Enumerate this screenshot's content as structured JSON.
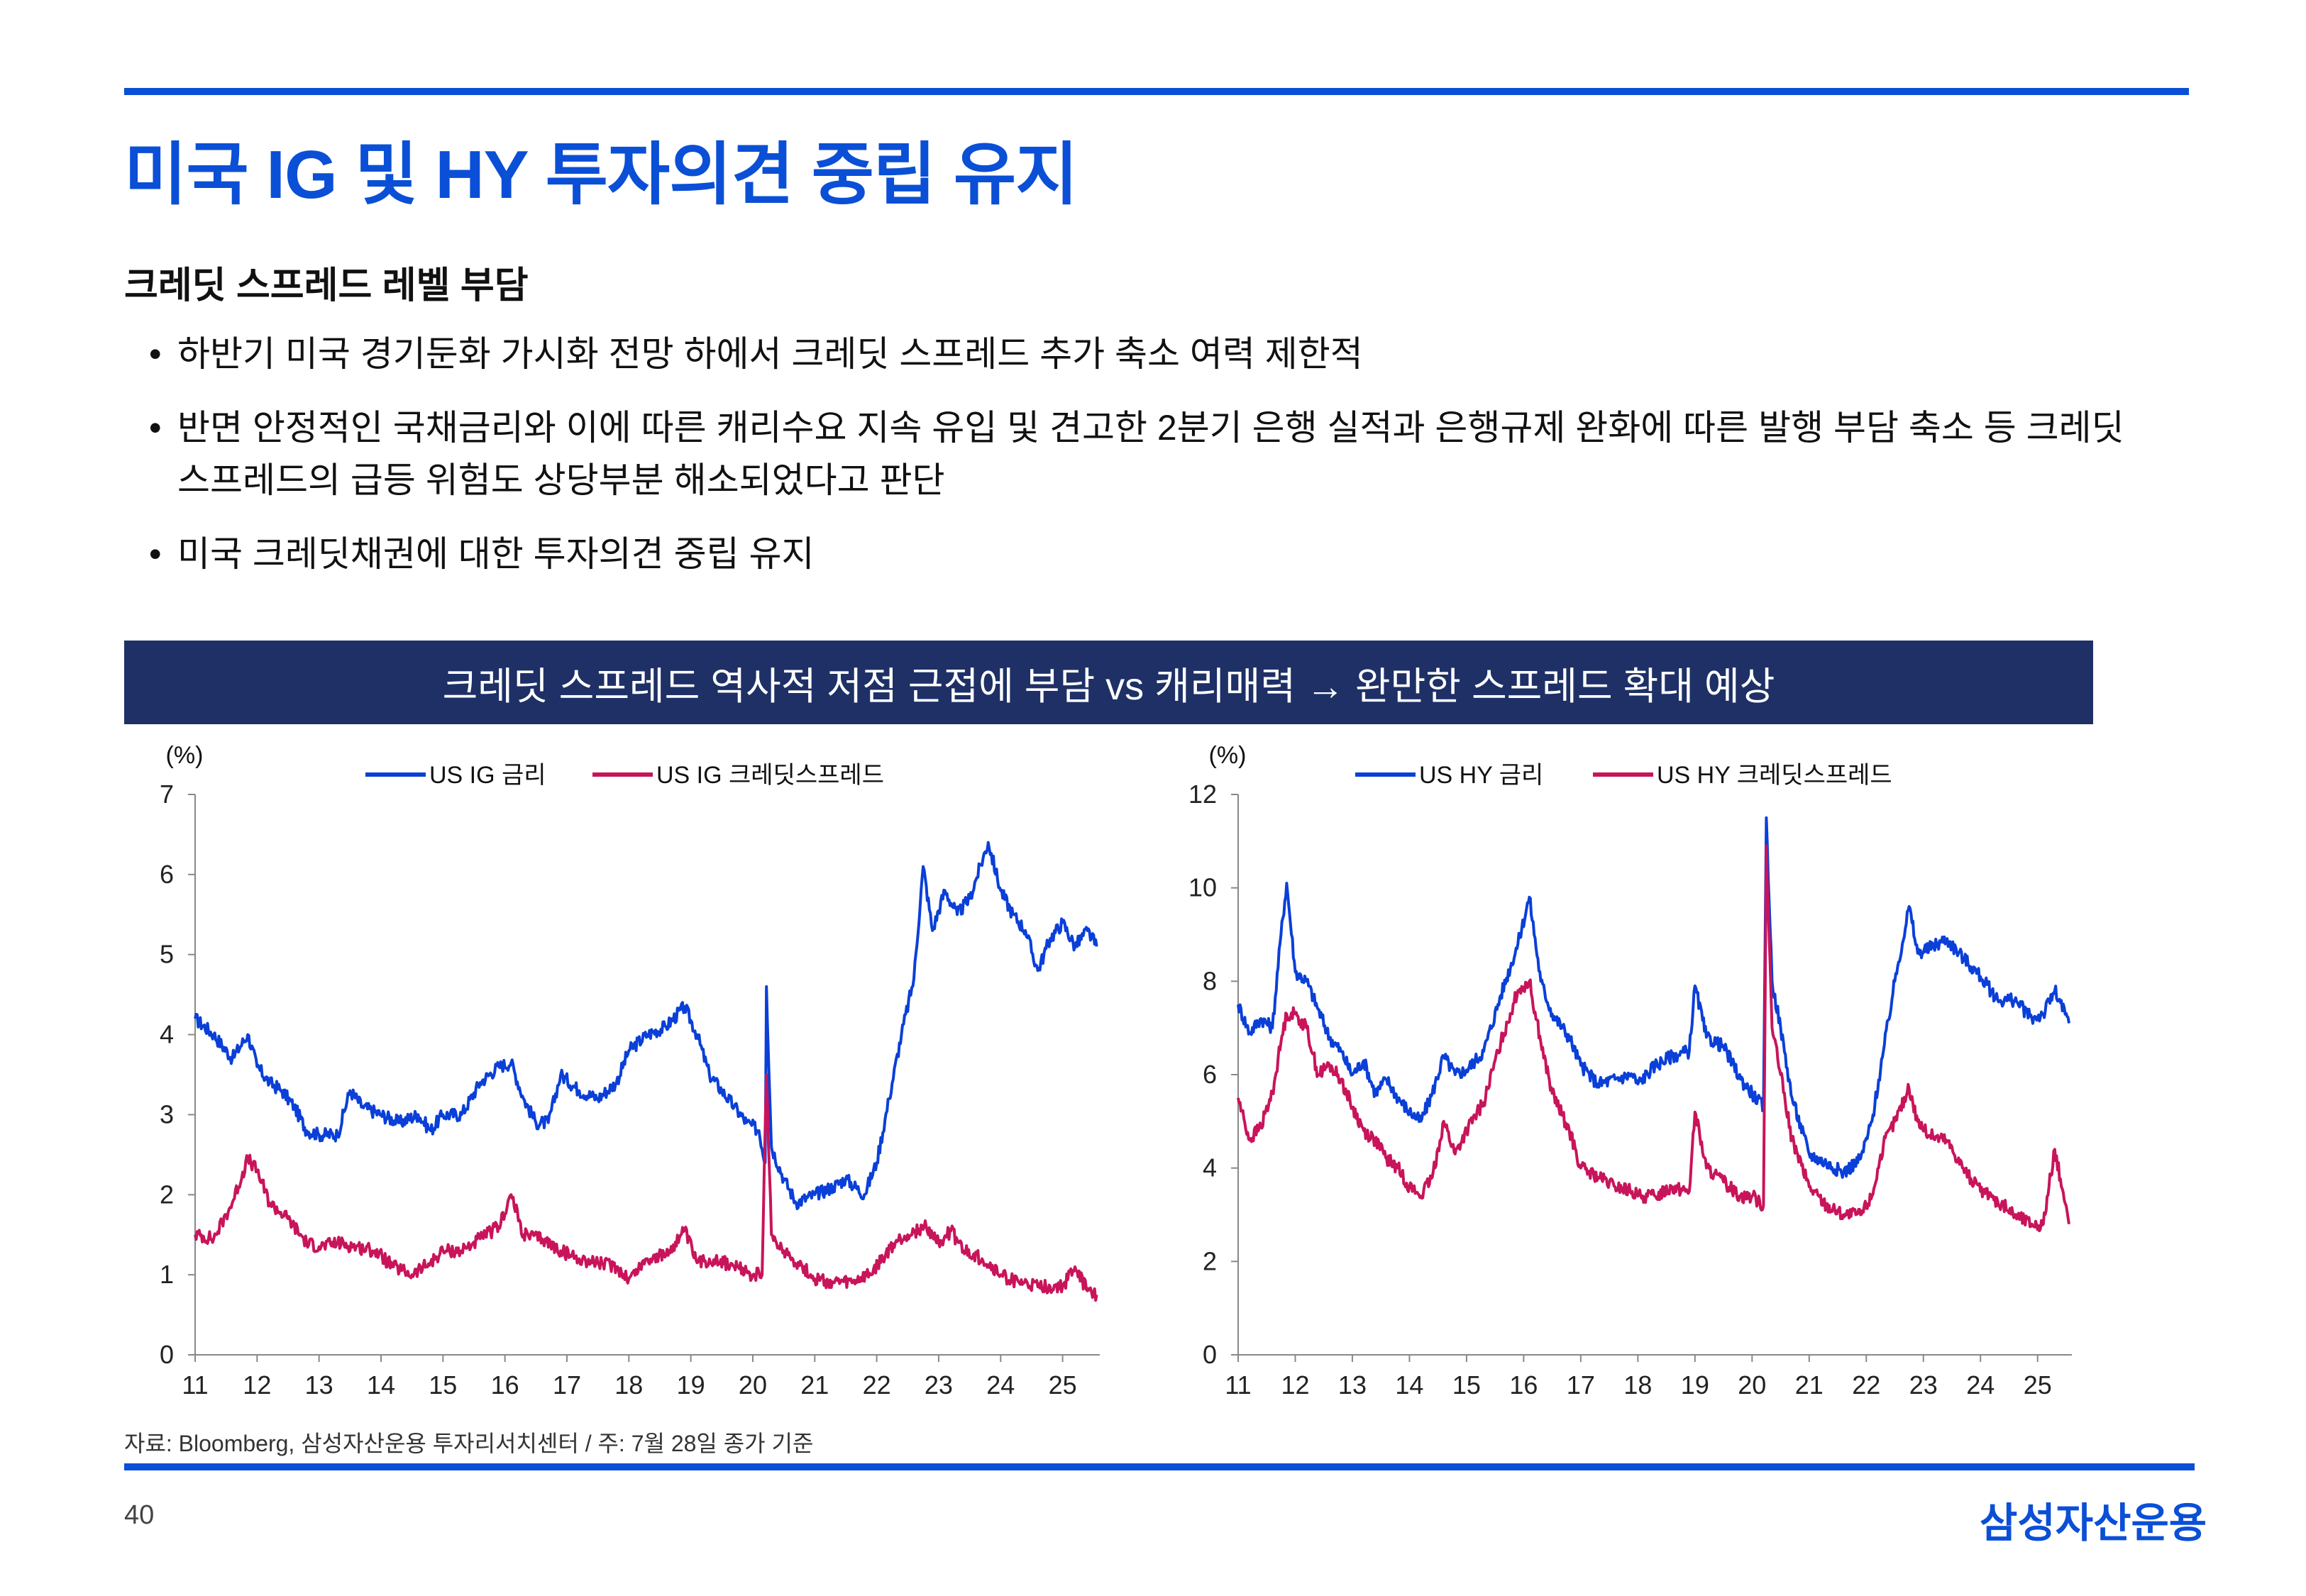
{
  "header": {
    "title": "미국 IG 및 HY 투자의견 중립 유지",
    "subtitle": "크레딧 스프레드 레벨 부담"
  },
  "bullets": [
    "하반기 미국 경기둔화 가시화 전망 하에서 크레딧 스프레드 추가 축소 여력 제한적",
    "반면 안정적인 국채금리와 이에 따른 캐리수요 지속 유입 및 견고한 2분기 은행 실적과 은행규제 완화에 따른 발행 부담 축소 등 크레딧 스프레드의 급등 위험도 상당부분 해소되었다고 판단",
    "미국 크레딧채권에 대한 투자의견 중립 유지"
  ],
  "banner": {
    "text": "크레딧 스프레드 역사적 저점 근접에 부담 vs 캐리매력 → 완만한 스프레드 확대 예상"
  },
  "colors": {
    "brand_blue": "#0a4fd6",
    "banner_navy": "#1e3066",
    "series_blue": "#0a3fd8",
    "series_magenta": "#c8145a"
  },
  "chart_data": [
    {
      "type": "line",
      "unit_label": "(%)",
      "ylim": [
        0,
        7
      ],
      "yticks": [
        "0",
        "1",
        "2",
        "3",
        "4",
        "5",
        "6",
        "7"
      ],
      "xlim": [
        11,
        25.6
      ],
      "xticks": [
        "11",
        "12",
        "13",
        "14",
        "15",
        "16",
        "17",
        "18",
        "19",
        "20",
        "21",
        "22",
        "23",
        "24",
        "25"
      ],
      "legend_position": "top",
      "series": [
        {
          "name": "US IG 금리",
          "color": "#0a3fd8",
          "points": [
            [
              11.0,
              4.2
            ],
            [
              11.3,
              4.0
            ],
            [
              11.6,
              3.7
            ],
            [
              11.85,
              4.0
            ],
            [
              12.0,
              3.6
            ],
            [
              12.2,
              3.4
            ],
            [
              12.4,
              3.3
            ],
            [
              12.6,
              3.1
            ],
            [
              12.8,
              2.8
            ],
            [
              13.0,
              2.75
            ],
            [
              13.3,
              2.75
            ],
            [
              13.5,
              3.3
            ],
            [
              13.7,
              3.1
            ],
            [
              14.0,
              3.0
            ],
            [
              14.3,
              2.9
            ],
            [
              14.6,
              3.0
            ],
            [
              14.8,
              2.8
            ],
            [
              15.0,
              3.0
            ],
            [
              15.3,
              3.0
            ],
            [
              15.6,
              3.4
            ],
            [
              15.9,
              3.6
            ],
            [
              16.1,
              3.65
            ],
            [
              16.3,
              3.2
            ],
            [
              16.5,
              2.9
            ],
            [
              16.7,
              2.9
            ],
            [
              16.9,
              3.5
            ],
            [
              17.2,
              3.3
            ],
            [
              17.5,
              3.2
            ],
            [
              17.8,
              3.4
            ],
            [
              18.0,
              3.8
            ],
            [
              18.3,
              4.0
            ],
            [
              18.6,
              4.1
            ],
            [
              18.9,
              4.35
            ],
            [
              19.1,
              4.0
            ],
            [
              19.3,
              3.5
            ],
            [
              19.5,
              3.3
            ],
            [
              19.7,
              3.1
            ],
            [
              19.9,
              2.9
            ],
            [
              20.1,
              2.8
            ],
            [
              20.2,
              2.4
            ],
            [
              20.22,
              4.6
            ],
            [
              20.3,
              2.6
            ],
            [
              20.5,
              2.2
            ],
            [
              20.7,
              1.9
            ],
            [
              21.0,
              2.0
            ],
            [
              21.3,
              2.1
            ],
            [
              21.5,
              2.2
            ],
            [
              21.8,
              2.0
            ],
            [
              22.0,
              2.4
            ],
            [
              22.2,
              3.2
            ],
            [
              22.4,
              4.0
            ],
            [
              22.6,
              4.7
            ],
            [
              22.75,
              6.1
            ],
            [
              22.9,
              5.3
            ],
            [
              23.1,
              5.8
            ],
            [
              23.3,
              5.5
            ],
            [
              23.5,
              5.7
            ],
            [
              23.8,
              6.4
            ],
            [
              24.0,
              5.8
            ],
            [
              24.2,
              5.5
            ],
            [
              24.4,
              5.3
            ],
            [
              24.6,
              4.8
            ],
            [
              24.8,
              5.2
            ],
            [
              25.0,
              5.4
            ],
            [
              25.2,
              5.1
            ],
            [
              25.4,
              5.3
            ],
            [
              25.55,
              5.1
            ]
          ]
        },
        {
          "name": "US IG 크레딧스프레드",
          "color": "#c8145a",
          "points": [
            [
              11.0,
              1.5
            ],
            [
              11.3,
              1.45
            ],
            [
              11.6,
              1.9
            ],
            [
              11.85,
              2.45
            ],
            [
              12.0,
              2.3
            ],
            [
              12.2,
              1.9
            ],
            [
              12.5,
              1.7
            ],
            [
              12.8,
              1.4
            ],
            [
              13.0,
              1.35
            ],
            [
              13.3,
              1.4
            ],
            [
              13.6,
              1.35
            ],
            [
              13.9,
              1.3
            ],
            [
              14.2,
              1.1
            ],
            [
              14.5,
              1.0
            ],
            [
              14.8,
              1.15
            ],
            [
              15.0,
              1.3
            ],
            [
              15.3,
              1.3
            ],
            [
              15.6,
              1.45
            ],
            [
              15.9,
              1.6
            ],
            [
              16.1,
              2.0
            ],
            [
              16.3,
              1.5
            ],
            [
              16.6,
              1.45
            ],
            [
              16.9,
              1.3
            ],
            [
              17.2,
              1.2
            ],
            [
              17.5,
              1.15
            ],
            [
              17.8,
              1.1
            ],
            [
              18.0,
              0.95
            ],
            [
              18.3,
              1.2
            ],
            [
              18.6,
              1.25
            ],
            [
              18.9,
              1.55
            ],
            [
              19.1,
              1.15
            ],
            [
              19.4,
              1.2
            ],
            [
              19.7,
              1.1
            ],
            [
              20.0,
              1.0
            ],
            [
              20.15,
              1.0
            ],
            [
              20.22,
              3.5
            ],
            [
              20.3,
              1.5
            ],
            [
              20.5,
              1.3
            ],
            [
              20.8,
              1.1
            ],
            [
              21.0,
              0.95
            ],
            [
              21.3,
              0.9
            ],
            [
              21.6,
              0.9
            ],
            [
              21.9,
              1.0
            ],
            [
              22.1,
              1.2
            ],
            [
              22.3,
              1.4
            ],
            [
              22.5,
              1.5
            ],
            [
              22.8,
              1.6
            ],
            [
              23.0,
              1.4
            ],
            [
              23.2,
              1.55
            ],
            [
              23.4,
              1.3
            ],
            [
              23.7,
              1.2
            ],
            [
              24.0,
              1.0
            ],
            [
              24.3,
              0.9
            ],
            [
              24.6,
              0.85
            ],
            [
              24.8,
              0.85
            ],
            [
              25.0,
              0.85
            ],
            [
              25.2,
              1.1
            ],
            [
              25.4,
              0.8
            ],
            [
              25.55,
              0.75
            ]
          ]
        }
      ]
    },
    {
      "type": "line",
      "unit_label": "(%)",
      "ylim": [
        0,
        12
      ],
      "yticks": [
        "0",
        "2",
        "4",
        "6",
        "8",
        "10",
        "12"
      ],
      "xlim": [
        11,
        25.6
      ],
      "xticks": [
        "11",
        "12",
        "13",
        "14",
        "15",
        "16",
        "17",
        "18",
        "19",
        "20",
        "21",
        "22",
        "23",
        "24",
        "25"
      ],
      "legend_position": "top",
      "series": [
        {
          "name": "US HY 금리",
          "color": "#0a3fd8",
          "points": [
            [
              11.0,
              7.5
            ],
            [
              11.2,
              6.9
            ],
            [
              11.4,
              7.2
            ],
            [
              11.6,
              7.0
            ],
            [
              11.75,
              9.0
            ],
            [
              11.85,
              10.1
            ],
            [
              12.0,
              8.2
            ],
            [
              12.2,
              8.0
            ],
            [
              12.4,
              7.4
            ],
            [
              12.6,
              6.8
            ],
            [
              12.8,
              6.5
            ],
            [
              13.0,
              6.0
            ],
            [
              13.2,
              6.3
            ],
            [
              13.4,
              5.6
            ],
            [
              13.6,
              5.9
            ],
            [
              13.8,
              5.5
            ],
            [
              14.0,
              5.2
            ],
            [
              14.2,
              5.0
            ],
            [
              14.4,
              5.6
            ],
            [
              14.6,
              6.4
            ],
            [
              14.8,
              6.0
            ],
            [
              15.0,
              6.1
            ],
            [
              15.3,
              6.5
            ],
            [
              15.6,
              7.7
            ],
            [
              15.9,
              8.8
            ],
            [
              16.1,
              9.8
            ],
            [
              16.3,
              8.0
            ],
            [
              16.5,
              7.3
            ],
            [
              16.8,
              6.8
            ],
            [
              17.0,
              6.2
            ],
            [
              17.3,
              5.8
            ],
            [
              17.6,
              5.9
            ],
            [
              17.9,
              6.0
            ],
            [
              18.0,
              5.8
            ],
            [
              18.3,
              6.2
            ],
            [
              18.6,
              6.4
            ],
            [
              18.9,
              6.5
            ],
            [
              19.0,
              7.9
            ],
            [
              19.2,
              6.8
            ],
            [
              19.5,
              6.6
            ],
            [
              19.8,
              5.9
            ],
            [
              20.0,
              5.6
            ],
            [
              20.2,
              5.3
            ],
            [
              20.25,
              11.5
            ],
            [
              20.35,
              8.0
            ],
            [
              20.5,
              7.0
            ],
            [
              20.7,
              5.5
            ],
            [
              21.0,
              4.3
            ],
            [
              21.3,
              4.1
            ],
            [
              21.6,
              3.9
            ],
            [
              21.9,
              4.2
            ],
            [
              22.1,
              5.0
            ],
            [
              22.3,
              6.5
            ],
            [
              22.5,
              8.0
            ],
            [
              22.75,
              9.6
            ],
            [
              22.9,
              8.6
            ],
            [
              23.1,
              8.7
            ],
            [
              23.4,
              8.9
            ],
            [
              23.7,
              8.5
            ],
            [
              24.0,
              8.1
            ],
            [
              24.3,
              7.6
            ],
            [
              24.6,
              7.6
            ],
            [
              24.9,
              7.2
            ],
            [
              25.1,
              7.3
            ],
            [
              25.3,
              7.8
            ],
            [
              25.55,
              7.1
            ]
          ]
        },
        {
          "name": "US HY 크레딧스프레드",
          "color": "#c8145a",
          "points": [
            [
              11.0,
              5.5
            ],
            [
              11.2,
              4.6
            ],
            [
              11.4,
              4.9
            ],
            [
              11.6,
              5.6
            ],
            [
              11.75,
              6.7
            ],
            [
              11.85,
              7.3
            ],
            [
              12.0,
              7.3
            ],
            [
              12.2,
              7.0
            ],
            [
              12.4,
              6.0
            ],
            [
              12.6,
              6.2
            ],
            [
              12.8,
              5.9
            ],
            [
              13.0,
              5.3
            ],
            [
              13.2,
              4.8
            ],
            [
              13.4,
              4.6
            ],
            [
              13.6,
              4.2
            ],
            [
              13.8,
              4.0
            ],
            [
              14.0,
              3.6
            ],
            [
              14.2,
              3.4
            ],
            [
              14.4,
              3.8
            ],
            [
              14.6,
              5.0
            ],
            [
              14.8,
              4.3
            ],
            [
              15.0,
              4.8
            ],
            [
              15.3,
              5.4
            ],
            [
              15.6,
              6.7
            ],
            [
              15.9,
              7.8
            ],
            [
              16.1,
              8.0
            ],
            [
              16.3,
              6.7
            ],
            [
              16.5,
              5.6
            ],
            [
              16.8,
              4.8
            ],
            [
              17.0,
              4.0
            ],
            [
              17.3,
              3.8
            ],
            [
              17.6,
              3.6
            ],
            [
              17.9,
              3.5
            ],
            [
              18.0,
              3.4
            ],
            [
              18.3,
              3.4
            ],
            [
              18.6,
              3.6
            ],
            [
              18.9,
              3.5
            ],
            [
              19.0,
              5.2
            ],
            [
              19.2,
              4.0
            ],
            [
              19.5,
              3.7
            ],
            [
              19.8,
              3.4
            ],
            [
              20.0,
              3.4
            ],
            [
              20.2,
              3.2
            ],
            [
              20.25,
              10.9
            ],
            [
              20.35,
              7.0
            ],
            [
              20.5,
              6.0
            ],
            [
              20.7,
              4.6
            ],
            [
              21.0,
              3.6
            ],
            [
              21.3,
              3.2
            ],
            [
              21.6,
              3.0
            ],
            [
              21.9,
              3.0
            ],
            [
              22.1,
              3.4
            ],
            [
              22.3,
              4.5
            ],
            [
              22.5,
              5.0
            ],
            [
              22.75,
              5.7
            ],
            [
              22.9,
              5.0
            ],
            [
              23.1,
              4.7
            ],
            [
              23.4,
              4.6
            ],
            [
              23.7,
              4.0
            ],
            [
              24.0,
              3.5
            ],
            [
              24.3,
              3.3
            ],
            [
              24.6,
              3.0
            ],
            [
              24.9,
              2.8
            ],
            [
              25.1,
              2.8
            ],
            [
              25.3,
              4.4
            ],
            [
              25.55,
              2.8
            ]
          ]
        }
      ]
    }
  ],
  "footer": {
    "source": "자료: Bloomberg, 삼성자산운용 투자리서치센터 / 주: 7월 28일 종가 기준",
    "page_number": "40",
    "brand": "삼성자산운용"
  }
}
